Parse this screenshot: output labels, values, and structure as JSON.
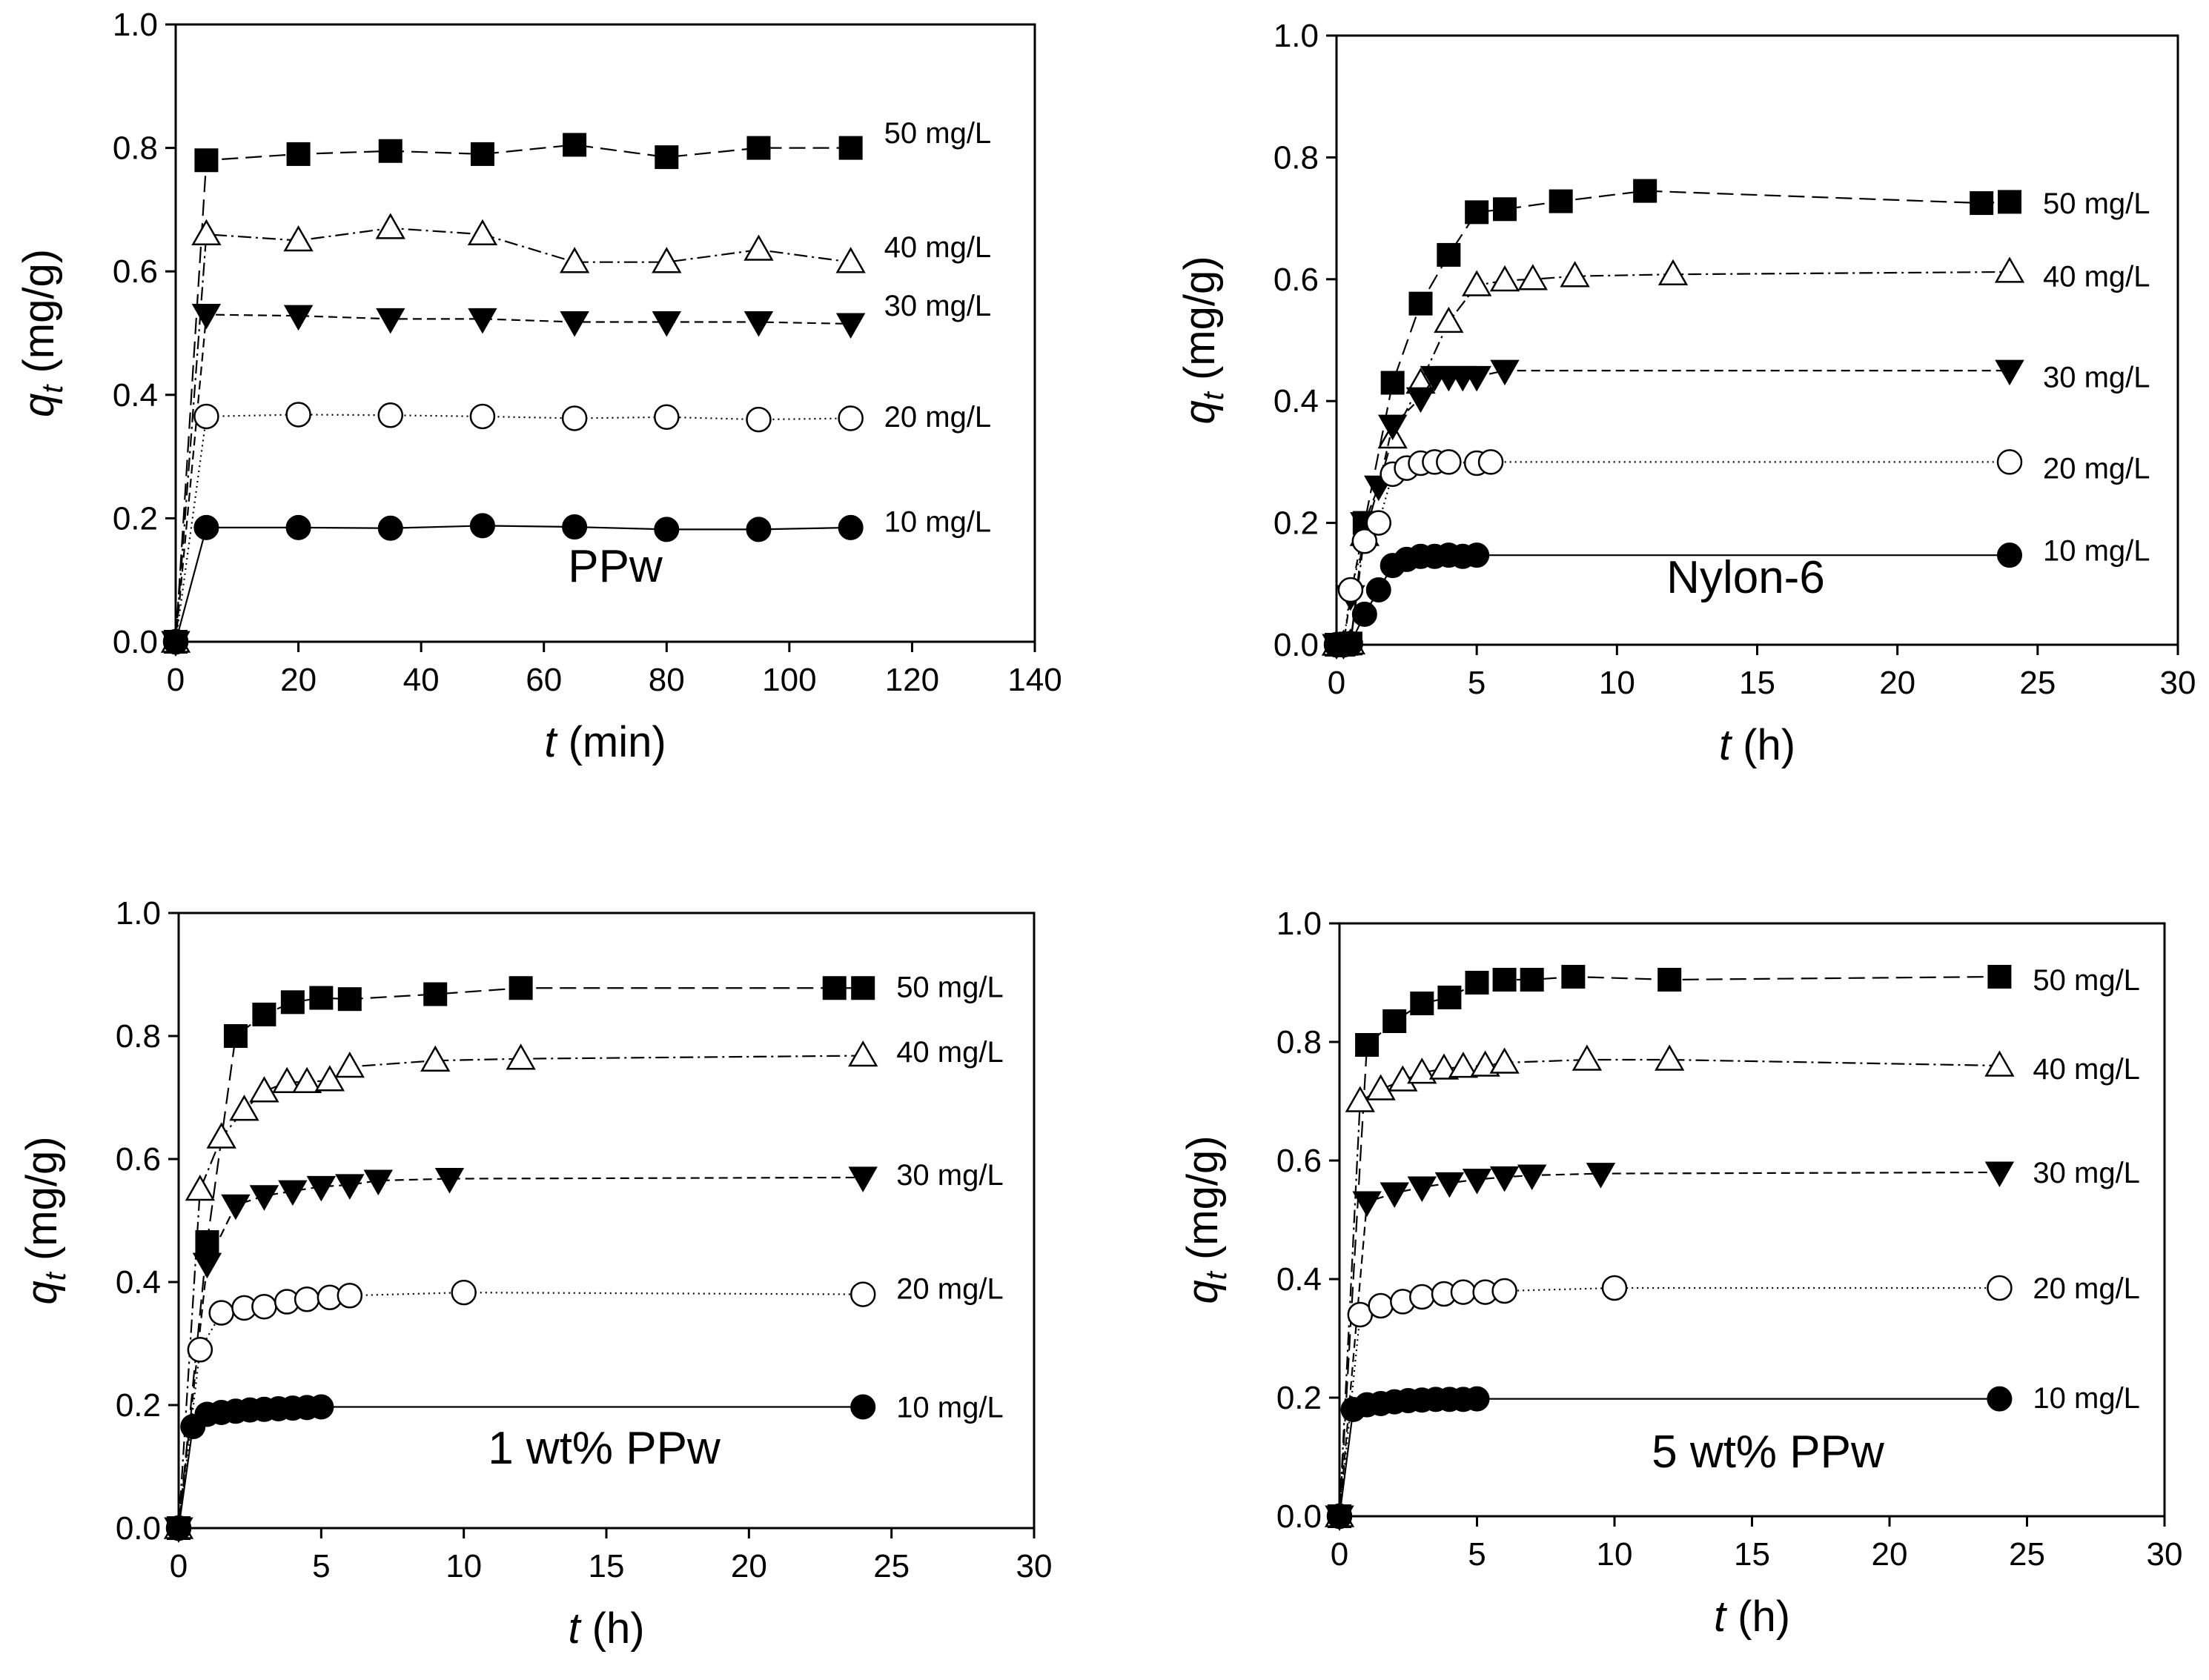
{
  "figure": {
    "type": "multi-panel kinetics plot",
    "panels": 4
  },
  "chart_data": [
    {
      "type": "line",
      "panel_label": "PPw",
      "xlabel_var": "t",
      "xlabel_unit": " (min)",
      "ylabel_var": "q",
      "ylabel_sub": "t",
      "ylabel_unit": " (mg/g)",
      "xlim": [
        0,
        140
      ],
      "ylim": [
        0,
        1.0
      ],
      "xticks": [
        0,
        20,
        40,
        60,
        80,
        100,
        120,
        140
      ],
      "yticks": [
        0.0,
        0.2,
        0.4,
        0.6,
        0.8,
        1.0
      ],
      "x_decimals": 0,
      "y_decimals": 1,
      "series": [
        {
          "name": "50 mg/L",
          "marker": "square-filled",
          "dash": "22,10",
          "x": [
            0,
            5,
            20,
            35,
            50,
            65,
            80,
            95,
            110
          ],
          "y": [
            0,
            0.78,
            0.79,
            0.795,
            0.79,
            0.805,
            0.785,
            0.8,
            0.8
          ],
          "label_y": 0.825
        },
        {
          "name": "40 mg/L",
          "marker": "triangle-up-open",
          "dash": "18,6,3,6",
          "x": [
            0,
            5,
            20,
            35,
            50,
            65,
            80,
            95,
            110
          ],
          "y": [
            0,
            0.66,
            0.65,
            0.67,
            0.66,
            0.615,
            0.615,
            0.635,
            0.615
          ],
          "label_y": 0.64
        },
        {
          "name": "30 mg/L",
          "marker": "triangle-down-filled",
          "dash": "12,7",
          "x": [
            0,
            5,
            20,
            35,
            50,
            65,
            80,
            95,
            110
          ],
          "y": [
            0,
            0.53,
            0.528,
            0.523,
            0.523,
            0.518,
            0.518,
            0.518,
            0.515
          ],
          "label_y": 0.545
        },
        {
          "name": "20 mg/L",
          "marker": "circle-open",
          "dash": "2,5",
          "x": [
            0,
            5,
            20,
            35,
            50,
            65,
            80,
            95,
            110
          ],
          "y": [
            0,
            0.365,
            0.368,
            0.367,
            0.365,
            0.362,
            0.364,
            0.36,
            0.362
          ],
          "label_y": 0.365
        },
        {
          "name": "10 mg/L",
          "marker": "circle-filled",
          "dash": "",
          "x": [
            0,
            5,
            20,
            35,
            50,
            65,
            80,
            95,
            110
          ],
          "y": [
            0,
            0.185,
            0.185,
            0.184,
            0.188,
            0.186,
            0.182,
            0.182,
            0.185
          ],
          "label_y": 0.195
        }
      ]
    },
    {
      "type": "line",
      "panel_label": "Nylon-6",
      "xlabel_var": "t",
      "xlabel_unit": " (h)",
      "ylabel_var": "q",
      "ylabel_sub": "t",
      "ylabel_unit": " (mg/g)",
      "xlim": [
        0,
        30
      ],
      "ylim": [
        0,
        1.0
      ],
      "xticks": [
        0,
        5,
        10,
        15,
        20,
        25,
        30
      ],
      "yticks": [
        0.0,
        0.2,
        0.4,
        0.6,
        0.8,
        1.0
      ],
      "x_decimals": 0,
      "y_decimals": 1,
      "series": [
        {
          "name": "50 mg/L",
          "marker": "square-filled",
          "dash": "22,10",
          "x": [
            0,
            0.25,
            0.5,
            1,
            2,
            3,
            4,
            5,
            6,
            8,
            11,
            23,
            24
          ],
          "y": [
            0,
            0,
            0.002,
            0.2,
            0.43,
            0.56,
            0.64,
            0.71,
            0.715,
            0.728,
            0.745,
            0.725,
            0.727
          ],
          "label_y": 0.725
        },
        {
          "name": "40 mg/L",
          "marker": "triangle-up-open",
          "dash": "18,6,3,6",
          "x": [
            0,
            0.25,
            0.5,
            1,
            2,
            3,
            4,
            5,
            6,
            7,
            8.5,
            12,
            24
          ],
          "y": [
            0,
            0,
            0.002,
            0.18,
            0.34,
            0.43,
            0.53,
            0.59,
            0.598,
            0.6,
            0.605,
            0.608,
            0.612
          ],
          "label_y": 0.605
        },
        {
          "name": "30 mg/L",
          "marker": "triangle-down-filled",
          "dash": "12,7",
          "x": [
            0,
            0.25,
            0.5,
            1,
            1.5,
            2,
            3,
            3.5,
            4,
            4.5,
            5,
            6,
            24
          ],
          "y": [
            0,
            0,
            0.08,
            0.2,
            0.26,
            0.36,
            0.405,
            0.44,
            0.44,
            0.44,
            0.44,
            0.45,
            0.45
          ],
          "label_y": 0.44
        },
        {
          "name": "20 mg/L",
          "marker": "circle-open",
          "dash": "2,5",
          "x": [
            0,
            0.25,
            0.5,
            1,
            1.5,
            2,
            2.5,
            3,
            3.5,
            4,
            5,
            5.5,
            24
          ],
          "y": [
            0,
            0,
            0.09,
            0.17,
            0.2,
            0.28,
            0.29,
            0.298,
            0.3,
            0.3,
            0.298,
            0.3,
            0.3
          ],
          "label_y": 0.29
        },
        {
          "name": "10 mg/L",
          "marker": "circle-filled",
          "dash": "",
          "x": [
            0,
            0.25,
            0.5,
            1,
            1.5,
            2,
            2.5,
            3,
            3.5,
            4,
            4.5,
            5,
            24
          ],
          "y": [
            0,
            0,
            0.002,
            0.05,
            0.09,
            0.13,
            0.14,
            0.145,
            0.145,
            0.147,
            0.145,
            0.147,
            0.147
          ],
          "label_y": 0.155
        }
      ]
    },
    {
      "type": "line",
      "panel_label": "1 wt% PPw",
      "xlabel_var": "t",
      "xlabel_unit": " (h)",
      "ylabel_var": "q",
      "ylabel_sub": "t",
      "ylabel_unit": " (mg/g)",
      "xlim": [
        0,
        30
      ],
      "ylim": [
        0,
        1.0
      ],
      "xticks": [
        0,
        5,
        10,
        15,
        20,
        25,
        30
      ],
      "yticks": [
        0.0,
        0.2,
        0.4,
        0.6,
        0.8,
        1.0
      ],
      "x_decimals": 0,
      "y_decimals": 1,
      "series": [
        {
          "name": "50 mg/L",
          "marker": "square-filled",
          "dash": "22,10",
          "x": [
            0,
            1,
            2,
            3,
            4,
            5,
            6,
            9,
            12,
            23,
            24
          ],
          "y": [
            0,
            0.465,
            0.8,
            0.835,
            0.855,
            0.862,
            0.86,
            0.868,
            0.878,
            0.878,
            0.878
          ],
          "label_y": 0.88
        },
        {
          "name": "40 mg/L",
          "marker": "triangle-up-open",
          "dash": "18,6,3,6",
          "x": [
            0,
            0.75,
            1.5,
            2.3,
            3,
            3.8,
            4.5,
            5.3,
            6,
            9,
            12,
            24
          ],
          "y": [
            0,
            0.55,
            0.635,
            0.68,
            0.71,
            0.725,
            0.725,
            0.728,
            0.75,
            0.76,
            0.763,
            0.768
          ],
          "label_y": 0.775
        },
        {
          "name": "30 mg/L",
          "marker": "triangle-down-filled",
          "dash": "12,7",
          "x": [
            0,
            1,
            2,
            3,
            4,
            5,
            6,
            7,
            9.5,
            24
          ],
          "y": [
            0,
            0.43,
            0.525,
            0.54,
            0.548,
            0.555,
            0.558,
            0.565,
            0.568,
            0.57
          ],
          "label_y": 0.575
        },
        {
          "name": "20 mg/L",
          "marker": "circle-open",
          "dash": "2,5",
          "x": [
            0,
            0.75,
            1.5,
            2.3,
            3,
            3.8,
            4.5,
            5.3,
            6,
            10,
            24
          ],
          "y": [
            0,
            0.29,
            0.35,
            0.358,
            0.36,
            0.368,
            0.372,
            0.375,
            0.378,
            0.383,
            0.38
          ],
          "label_y": 0.39
        },
        {
          "name": "10 mg/L",
          "marker": "circle-filled",
          "dash": "",
          "x": [
            0,
            0.5,
            1,
            1.5,
            2,
            2.5,
            3,
            3.5,
            4,
            4.5,
            5,
            24
          ],
          "y": [
            0,
            0.165,
            0.185,
            0.188,
            0.19,
            0.192,
            0.193,
            0.194,
            0.195,
            0.196,
            0.197,
            0.197
          ],
          "label_y": 0.197
        }
      ]
    },
    {
      "type": "line",
      "panel_label": "5 wt% PPw",
      "xlabel_var": "t",
      "xlabel_unit": " (h)",
      "ylabel_var": "q",
      "ylabel_sub": "t",
      "ylabel_unit": " (mg/g)",
      "xlim": [
        0,
        30
      ],
      "ylim": [
        0,
        1.0
      ],
      "xticks": [
        0,
        5,
        10,
        15,
        20,
        25,
        30
      ],
      "yticks": [
        0.0,
        0.2,
        0.4,
        0.6,
        0.8,
        1.0
      ],
      "x_decimals": 0,
      "y_decimals": 1,
      "series": [
        {
          "name": "50 mg/L",
          "marker": "square-filled",
          "dash": "22,10",
          "x": [
            0,
            1,
            2,
            3,
            4,
            5,
            6,
            7,
            8.5,
            12,
            24
          ],
          "y": [
            0,
            0.795,
            0.835,
            0.865,
            0.875,
            0.9,
            0.905,
            0.905,
            0.91,
            0.905,
            0.91
          ],
          "label_y": 0.905
        },
        {
          "name": "40 mg/L",
          "marker": "triangle-up-open",
          "dash": "18,6,3,6",
          "x": [
            0,
            0.75,
            1.5,
            2.3,
            3,
            3.8,
            4.5,
            5.3,
            6,
            9,
            12,
            24
          ],
          "y": [
            0,
            0.7,
            0.72,
            0.735,
            0.748,
            0.755,
            0.758,
            0.76,
            0.765,
            0.77,
            0.77,
            0.76
          ],
          "label_y": 0.755
        },
        {
          "name": "30 mg/L",
          "marker": "triangle-down-filled",
          "dash": "12,7",
          "x": [
            0,
            1,
            2,
            3,
            4,
            5,
            6,
            7,
            9.5,
            24
          ],
          "y": [
            0,
            0.53,
            0.545,
            0.555,
            0.562,
            0.568,
            0.572,
            0.575,
            0.578,
            0.58
          ],
          "label_y": 0.58
        },
        {
          "name": "20 mg/L",
          "marker": "circle-open",
          "dash": "2,5",
          "x": [
            0,
            0.75,
            1.5,
            2.3,
            3,
            3.8,
            4.5,
            5.3,
            6,
            10,
            24
          ],
          "y": [
            0,
            0.34,
            0.355,
            0.362,
            0.37,
            0.375,
            0.378,
            0.378,
            0.38,
            0.385,
            0.385
          ],
          "label_y": 0.385
        },
        {
          "name": "10 mg/L",
          "marker": "circle-filled",
          "dash": "",
          "x": [
            0,
            0.5,
            1,
            1.5,
            2,
            2.5,
            3,
            3.5,
            4,
            4.5,
            5,
            24
          ],
          "y": [
            0,
            0.18,
            0.188,
            0.19,
            0.193,
            0.195,
            0.196,
            0.197,
            0.197,
            0.197,
            0.198,
            0.198
          ],
          "label_y": 0.2
        }
      ]
    }
  ]
}
